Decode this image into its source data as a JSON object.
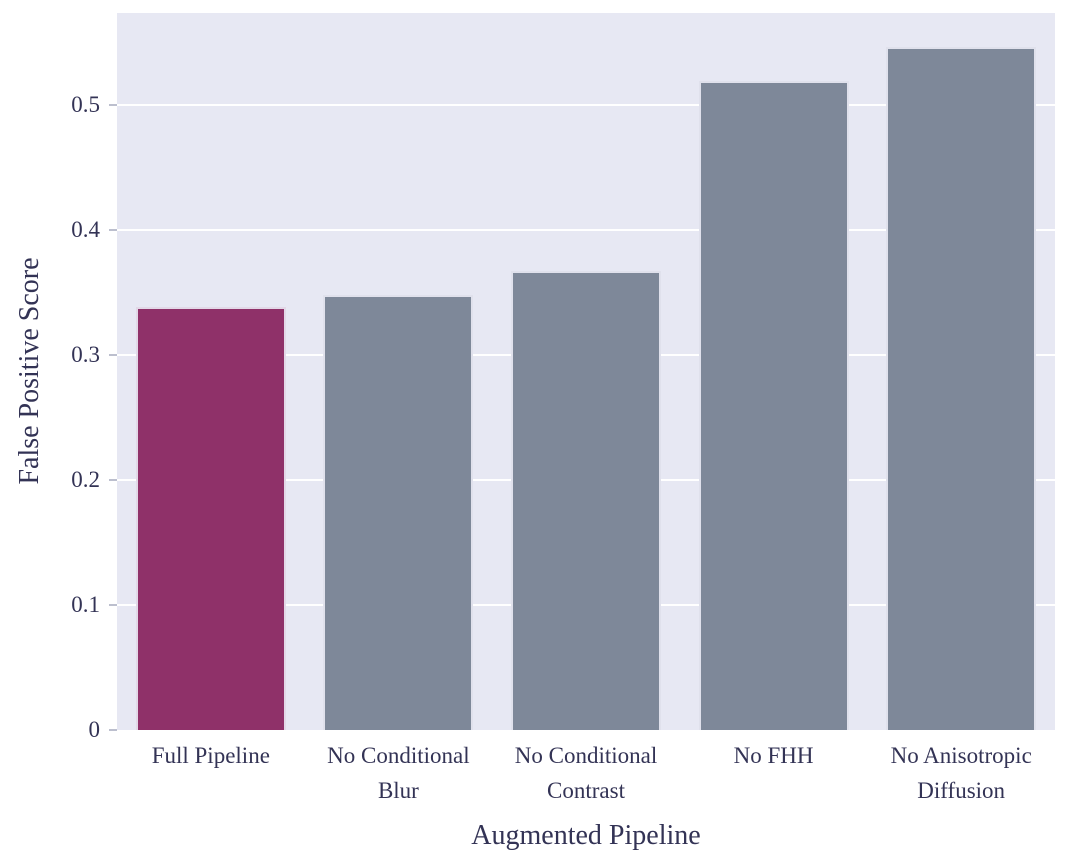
{
  "chart_data": {
    "type": "bar",
    "title": "",
    "xlabel": "Augmented Pipeline",
    "ylabel": "False Positive Score",
    "categories": [
      "Full Pipeline",
      "No Conditional Blur",
      "No Conditional Contrast",
      "No FHH",
      "No Anisotropic Diffusion"
    ],
    "category_label_lines": [
      [
        "Full Pipeline"
      ],
      [
        "No Conditional",
        "Blur"
      ],
      [
        "No Conditional",
        "Contrast"
      ],
      [
        "No FHH"
      ],
      [
        "No Anisotropic",
        "Diffusion"
      ]
    ],
    "values": [
      0.338,
      0.348,
      0.367,
      0.519,
      0.546
    ],
    "bar_colors": [
      "#8f3169",
      "#7e8899",
      "#7e8899",
      "#7e8899",
      "#7e8899"
    ],
    "highlight_color": "#8f3169",
    "default_bar_color": "#7e8899",
    "yticks": [
      0,
      0.1,
      0.2,
      0.3,
      0.4,
      0.5
    ],
    "ytick_labels": [
      "0",
      "0.1",
      "0.2",
      "0.3",
      "0.4",
      "0.5"
    ],
    "ylim": [
      0,
      0.5736
    ],
    "grid": "horizontal-white",
    "legend": "none",
    "plot_background": "#e7e8f3",
    "figure_background": "#ffffff",
    "axis_text_color": "#333355"
  }
}
